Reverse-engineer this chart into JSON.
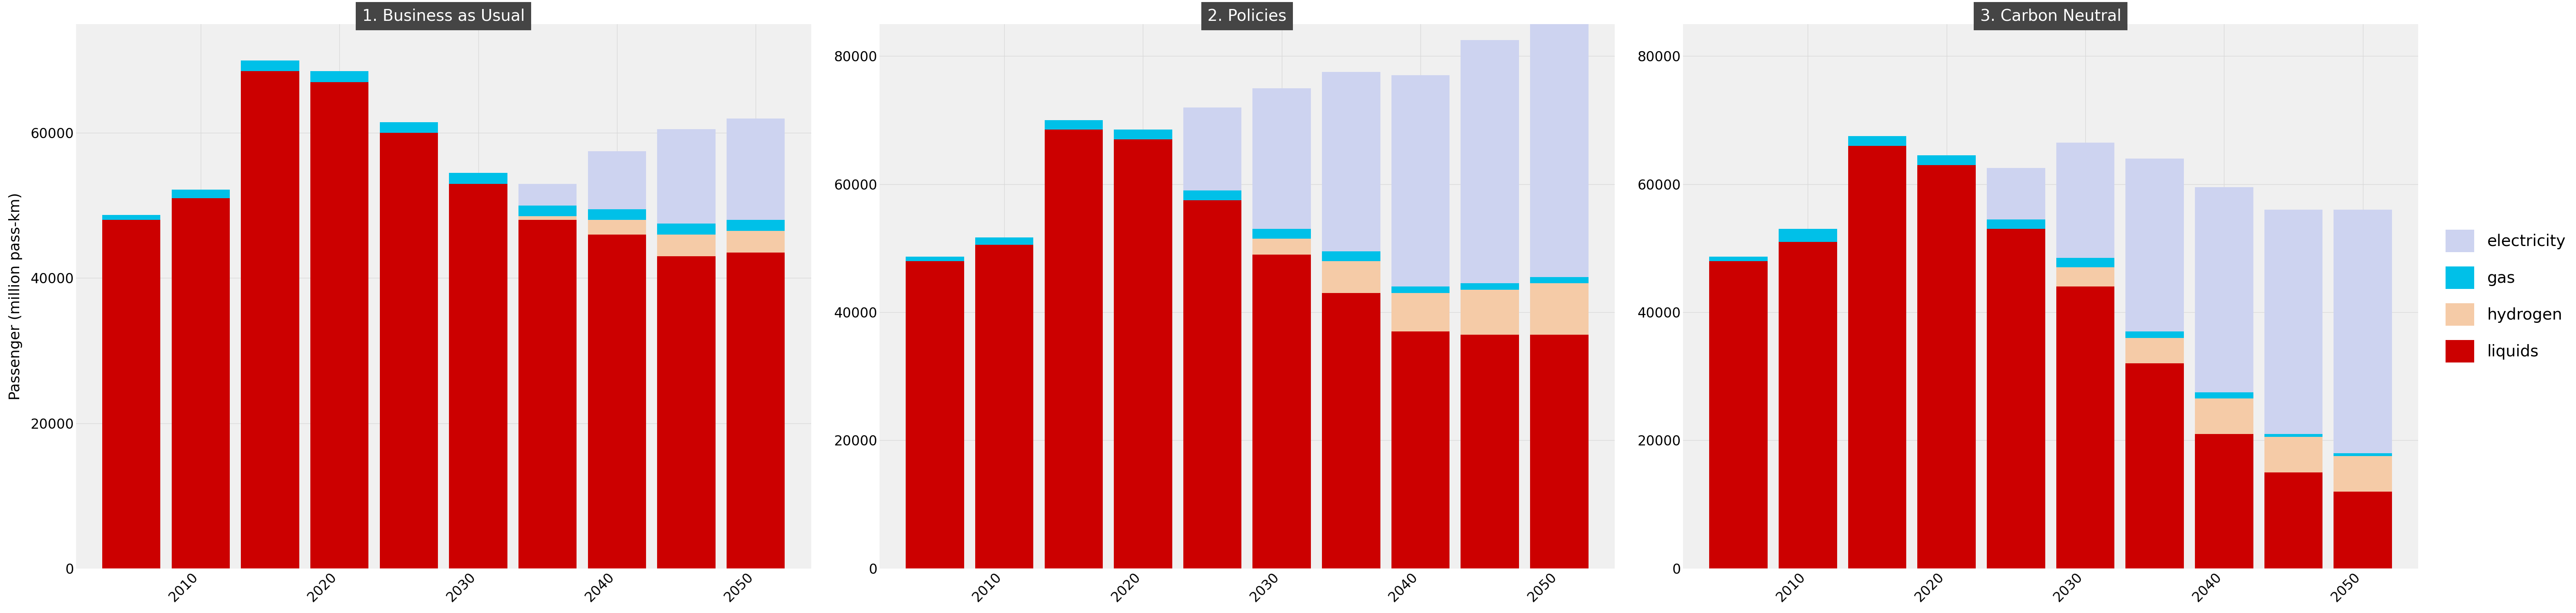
{
  "scenarios": [
    "1. Business as Usual",
    "2. Policies",
    "3. Carbon Neutral"
  ],
  "years": [
    2005,
    2010,
    2015,
    2020,
    2025,
    2030,
    2035,
    2040,
    2045,
    2050
  ],
  "xtick_years": [
    2010,
    2020,
    2030,
    2040,
    2050
  ],
  "scenario1": {
    "liquids": [
      48000,
      51000,
      68500,
      67000,
      60000,
      53000,
      48000,
      46000,
      43000,
      43500
    ],
    "hydrogen": [
      0,
      0,
      0,
      0,
      0,
      0,
      500,
      2000,
      3000,
      3000
    ],
    "gas": [
      700,
      1200,
      1500,
      1500,
      1500,
      1500,
      1500,
      1500,
      1500,
      1500
    ],
    "electricity": [
      0,
      0,
      0,
      0,
      0,
      0,
      3000,
      8000,
      13000,
      14000
    ]
  },
  "scenario2": {
    "liquids": [
      48000,
      50500,
      68500,
      67000,
      57500,
      49000,
      43000,
      37000,
      36500,
      36500
    ],
    "hydrogen": [
      0,
      0,
      0,
      0,
      0,
      2500,
      5000,
      6000,
      7000,
      8000
    ],
    "gas": [
      700,
      1200,
      1500,
      1500,
      1500,
      1500,
      1500,
      1000,
      1000,
      1000
    ],
    "electricity": [
      0,
      0,
      0,
      0,
      13000,
      22000,
      28000,
      33000,
      38000,
      41000
    ]
  },
  "scenario3": {
    "liquids": [
      48000,
      51000,
      66000,
      63000,
      53000,
      44000,
      32000,
      21000,
      15000,
      12000
    ],
    "hydrogen": [
      0,
      0,
      0,
      0,
      0,
      3000,
      4000,
      5500,
      5500,
      5500
    ],
    "gas": [
      700,
      2000,
      1500,
      1500,
      1500,
      1500,
      1000,
      1000,
      500,
      500
    ],
    "electricity": [
      0,
      0,
      0,
      0,
      8000,
      18000,
      27000,
      32000,
      35000,
      38000
    ]
  },
  "colors": {
    "liquids": "#cc0000",
    "hydrogen": "#f5cba7",
    "gas": "#00c0e8",
    "electricity": "#cdd3f0"
  },
  "ylim1": [
    0,
    75000
  ],
  "ylim23": [
    0,
    85000
  ],
  "yticks1": [
    0,
    20000,
    40000,
    60000
  ],
  "yticks23": [
    0,
    20000,
    40000,
    60000,
    80000
  ],
  "ylabel": "Passenger (million pass-km)",
  "background_color": "#ffffff",
  "panel_bg": "#f0f0f0",
  "title_bg": "#454545",
  "title_color": "#ffffff",
  "grid_color": "#d8d8d8",
  "bar_width": 4.2,
  "legend_labels": [
    "electricity",
    "gas",
    "hydrogen",
    "liquids"
  ],
  "legend_colors": [
    "#cdd3f0",
    "#00c0e8",
    "#f5cba7",
    "#cc0000"
  ]
}
